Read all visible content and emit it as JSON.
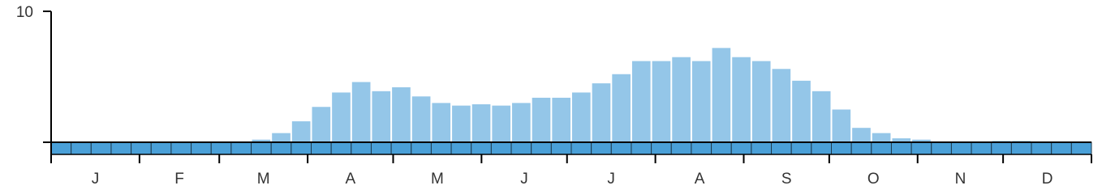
{
  "chart_data": {
    "type": "bar",
    "values": [
      0,
      0,
      0,
      0,
      0,
      0,
      0,
      0,
      0,
      0,
      0.2,
      0.7,
      1.6,
      2.7,
      3.8,
      4.6,
      3.9,
      4.2,
      3.5,
      3.0,
      2.8,
      2.9,
      2.8,
      3.0,
      3.4,
      3.4,
      3.8,
      4.5,
      5.2,
      6.2,
      6.2,
      6.5,
      6.2,
      7.2,
      6.5,
      6.2,
      5.6,
      4.7,
      3.9,
      2.5,
      1.1,
      0.7,
      0.3,
      0.2,
      0,
      0,
      0,
      0.1,
      0.1,
      0,
      0,
      0
    ],
    "color": "#94c6e8",
    "strip_color": "#4aa0d8",
    "months": [
      "J",
      "F",
      "M",
      "A",
      "M",
      "J",
      "J",
      "A",
      "S",
      "O",
      "N",
      "D"
    ],
    "ylim": [
      0,
      10
    ],
    "yticks": [
      10
    ]
  }
}
